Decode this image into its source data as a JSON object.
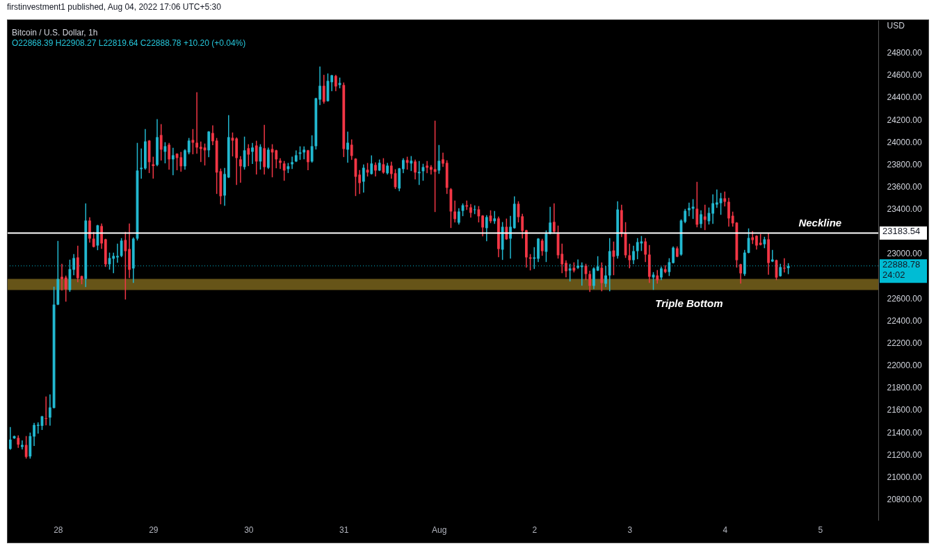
{
  "chart_data": {
    "type": "candlestick",
    "title": "Bitcoin / U.S. Dollar, 1h",
    "subtitle": "O22868.39 H22908.27 L22819.64 C22888.78 +10.20 (+0.04%)",
    "ylabel": "USD",
    "colors": [
      "#22b8d0",
      "#22b8d0",
      "#f23645",
      "#22b8d0",
      "#f23645",
      "#22b8d0",
      "#22b8d0",
      "#22b8d0",
      "#22b8d0",
      "#f23645",
      "#22b8d0",
      "#22b8d0",
      "#22b8d0",
      "#f23645",
      "#f23645",
      "#22b8d0",
      "#22b8d0",
      "#f23645",
      "#f23645",
      "#22b8d0",
      "#f23645",
      "#f23645",
      "#22b8d0",
      "#f23645",
      "#f23645",
      "#22b8d0",
      "#22b8d0",
      "#22b8d0",
      "#22b8d0",
      "#f23645",
      "#f23645",
      "#22b8d0",
      "#22b8d0",
      "#22b8d0",
      "#22b8d0",
      "#f23645",
      "#f23645",
      "#22b8d0",
      "#f23645",
      "#22b8d0",
      "#f23645",
      "#22b8d0",
      "#f23645",
      "#f23645",
      "#22b8d0",
      "#22b8d0",
      "#f23645",
      "#f23645",
      "#f23645",
      "#f23645",
      "#22b8d0",
      "#f23645",
      "#f23645",
      "#f23645",
      "#22b8d0",
      "#22b8d0",
      "#f23645",
      "#f23645",
      "#f23645",
      "#22b8d0",
      "#f23645",
      "#22b8d0",
      "#f23645",
      "#22b8d0",
      "#f23645",
      "#22b8d0",
      "#f23645",
      "#f23645",
      "#f23645",
      "#f23645",
      "#22b8d0",
      "#22b8d0",
      "#22b8d0",
      "#22b8d0",
      "#22b8d0",
      "#f23645",
      "#22b8d0",
      "#22b8d0",
      "#22b8d0",
      "#f23645",
      "#22b8d0",
      "#22b8d0",
      "#f23645",
      "#22b8d0",
      "#f23645",
      "#22b8d0",
      "#f23645",
      "#f23645",
      "#f23645",
      "#22b8d0",
      "#f23645",
      "#22b8d0",
      "#f23645",
      "#22b8d0",
      "#f23645",
      "#22b8d0",
      "#f23645",
      "#f23645",
      "#22b8d0",
      "#22b8d0",
      "#f23645",
      "#22b8d0",
      "#f23645",
      "#22b8d0",
      "#22b8d0",
      "#f23645",
      "#f23645",
      "#f23645",
      "#22b8d0",
      "#f23645",
      "#f23645",
      "#f23645",
      "#f23645",
      "#22b8d0",
      "#22b8d0",
      "#f23645",
      "#f23645",
      "#22b8d0",
      "#f23645",
      "#f23645",
      "#22b8d0",
      "#f23645",
      "#22b8d0",
      "#f23645",
      "#22b8d0",
      "#f23645",
      "#22b8d0",
      "#22b8d0",
      "#f23645",
      "#f23645",
      "#f23645",
      "#f23645",
      "#22b8d0",
      "#22b8d0",
      "#f23645",
      "#22b8d0",
      "#22b8d0",
      "#f23645",
      "#f23645",
      "#f23645",
      "#f23645",
      "#22b8d0",
      "#f23645",
      "#22b8d0",
      "#22b8d0",
      "#f23645",
      "#f23645",
      "#22b8d0",
      "#22b8d0",
      "#f23645",
      "#22b8d0",
      "#22b8d0",
      "#f23645",
      "#22b8d0",
      "#f23645",
      "#f23645",
      "#f23645",
      "#22b8d0",
      "#22b8d0",
      "#22b8d0",
      "#f23645",
      "#f23645",
      "#22b8d0",
      "#f23645",
      "#22b8d0",
      "#f23645",
      "#22b8d0",
      "#22b8d0",
      "#f23645",
      "#22b8d0",
      "#22b8d0",
      "#22b8d0",
      "#22b8d0",
      "#f23645",
      "#22b8d0",
      "#f23645",
      "#22b8d0",
      "#22b8d0",
      "#22b8d0",
      "#22b8d0",
      "#f23645",
      "#f23645",
      "#f23645",
      "#f23645",
      "#f23645",
      "#22b8d0",
      "#22b8d0",
      "#f23645",
      "#f23645",
      "#f23645",
      "#22b8d0",
      "#f23645",
      "#22b8d0",
      "#f23645",
      "#22b8d0",
      "#f23645",
      "#22b8d0"
    ],
    "x": [
      "2022-07-27T12:00",
      "2022-07-27T13:00",
      "2022-07-27T14:00",
      "2022-07-27T15:00",
      "2022-07-27T16:00",
      "2022-07-27T17:00",
      "2022-07-27T18:00",
      "2022-07-27T19:00",
      "2022-07-27T20:00",
      "2022-07-27T21:00",
      "2022-07-27T22:00",
      "2022-07-27T23:00",
      "2022-07-28T00:00",
      "2022-07-28T01:00",
      "2022-07-28T02:00",
      "2022-07-28T03:00",
      "2022-07-28T04:00",
      "2022-07-28T05:00",
      "2022-07-28T06:00",
      "2022-07-28T07:00",
      "2022-07-28T08:00",
      "2022-07-28T09:00",
      "2022-07-28T10:00",
      "2022-07-28T11:00",
      "2022-07-28T12:00",
      "2022-07-28T13:00",
      "2022-07-28T14:00",
      "2022-07-28T15:00",
      "2022-07-28T16:00",
      "2022-07-28T17:00",
      "2022-07-28T18:00",
      "2022-07-28T19:00",
      "2022-07-28T20:00",
      "2022-07-28T21:00",
      "2022-07-28T22:00",
      "2022-07-28T23:00",
      "2022-07-29T00:00",
      "2022-07-29T01:00",
      "2022-07-29T02:00",
      "2022-07-29T03:00",
      "2022-07-29T04:00",
      "2022-07-29T05:00",
      "2022-07-29T06:00",
      "2022-07-29T07:00",
      "2022-07-29T08:00",
      "2022-07-29T09:00",
      "2022-07-29T10:00",
      "2022-07-29T11:00",
      "2022-07-29T12:00",
      "2022-07-29T13:00",
      "2022-07-29T14:00",
      "2022-07-29T15:00",
      "2022-07-29T16:00",
      "2022-07-29T17:00",
      "2022-07-29T18:00",
      "2022-07-29T19:00",
      "2022-07-29T20:00",
      "2022-07-29T21:00",
      "2022-07-29T22:00",
      "2022-07-29T23:00",
      "2022-07-30T00:00",
      "2022-07-30T01:00",
      "2022-07-30T02:00",
      "2022-07-30T03:00",
      "2022-07-30T04:00",
      "2022-07-30T05:00",
      "2022-07-30T06:00",
      "2022-07-30T07:00",
      "2022-07-30T08:00",
      "2022-07-30T09:00",
      "2022-07-30T10:00",
      "2022-07-30T11:00",
      "2022-07-30T12:00",
      "2022-07-30T13:00",
      "2022-07-30T14:00",
      "2022-07-30T15:00",
      "2022-07-30T16:00",
      "2022-07-30T17:00",
      "2022-07-30T18:00",
      "2022-07-30T19:00",
      "2022-07-30T20:00",
      "2022-07-30T21:00",
      "2022-07-30T22:00",
      "2022-07-30T23:00",
      "2022-07-31T00:00",
      "2022-07-31T01:00",
      "2022-07-31T02:00",
      "2022-07-31T03:00",
      "2022-07-31T04:00",
      "2022-07-31T05:00",
      "2022-07-31T06:00",
      "2022-07-31T07:00",
      "2022-07-31T08:00",
      "2022-07-31T09:00",
      "2022-07-31T10:00",
      "2022-07-31T11:00",
      "2022-07-31T12:00",
      "2022-07-31T13:00",
      "2022-07-31T14:00",
      "2022-07-31T15:00",
      "2022-07-31T16:00",
      "2022-07-31T17:00",
      "2022-07-31T18:00",
      "2022-07-31T19:00",
      "2022-07-31T20:00",
      "2022-07-31T21:00",
      "2022-07-31T22:00",
      "2022-07-31T23:00",
      "2022-08-01T00:00",
      "2022-08-01T01:00",
      "2022-08-01T02:00",
      "2022-08-01T03:00",
      "2022-08-01T04:00",
      "2022-08-01T05:00",
      "2022-08-01T06:00",
      "2022-08-01T07:00",
      "2022-08-01T08:00",
      "2022-08-01T09:00",
      "2022-08-01T10:00",
      "2022-08-01T11:00",
      "2022-08-01T12:00",
      "2022-08-01T13:00",
      "2022-08-01T14:00",
      "2022-08-01T15:00",
      "2022-08-01T16:00",
      "2022-08-01T17:00",
      "2022-08-01T18:00",
      "2022-08-01T19:00",
      "2022-08-01T20:00",
      "2022-08-01T21:00",
      "2022-08-01T22:00",
      "2022-08-01T23:00",
      "2022-08-02T00:00",
      "2022-08-02T01:00",
      "2022-08-02T02:00",
      "2022-08-02T03:00",
      "2022-08-02T04:00",
      "2022-08-02T05:00",
      "2022-08-02T06:00",
      "2022-08-02T07:00",
      "2022-08-02T08:00",
      "2022-08-02T09:00",
      "2022-08-02T10:00",
      "2022-08-02T11:00",
      "2022-08-02T12:00",
      "2022-08-02T13:00",
      "2022-08-02T14:00",
      "2022-08-02T15:00",
      "2022-08-02T16:00",
      "2022-08-02T17:00",
      "2022-08-02T18:00",
      "2022-08-02T19:00",
      "2022-08-02T20:00",
      "2022-08-02T21:00",
      "2022-08-02T22:00",
      "2022-08-02T23:00",
      "2022-08-03T00:00",
      "2022-08-03T01:00",
      "2022-08-03T02:00",
      "2022-08-03T03:00",
      "2022-08-03T04:00",
      "2022-08-03T05:00",
      "2022-08-03T06:00",
      "2022-08-03T07:00",
      "2022-08-03T08:00",
      "2022-08-03T09:00",
      "2022-08-03T10:00",
      "2022-08-03T11:00",
      "2022-08-03T12:00",
      "2022-08-03T13:00",
      "2022-08-03T14:00",
      "2022-08-03T15:00",
      "2022-08-03T16:00",
      "2022-08-03T17:00",
      "2022-08-03T18:00",
      "2022-08-03T19:00",
      "2022-08-03T20:00",
      "2022-08-03T21:00",
      "2022-08-03T22:00",
      "2022-08-03T23:00",
      "2022-08-04T00:00",
      "2022-08-04T01:00",
      "2022-08-04T02:00",
      "2022-08-04T03:00",
      "2022-08-04T04:00",
      "2022-08-04T05:00",
      "2022-08-04T06:00",
      "2022-08-04T07:00",
      "2022-08-04T08:00",
      "2022-08-04T09:00",
      "2022-08-04T10:00",
      "2022-08-04T11:00",
      "2022-08-04T12:00",
      "2022-08-04T13:00",
      "2022-08-04T14:00",
      "2022-08-04T15:00",
      "2022-08-04T16:00"
    ],
    "ohlc": [
      [
        21250,
        21441,
        21246,
        21333
      ],
      [
        21344,
        21364,
        21344,
        21364
      ],
      [
        21348,
        21366,
        21263,
        21288
      ],
      [
        21267,
        21321,
        21250,
        21285
      ],
      [
        21285,
        21360,
        21167,
        21178
      ],
      [
        21182,
        21391,
        21167,
        21364
      ],
      [
        21360,
        21478,
        21281,
        21464
      ],
      [
        21456,
        21483,
        21391,
        21466
      ],
      [
        21456,
        21541,
        21424,
        21541
      ],
      [
        21524,
        21715,
        21466,
        21518
      ],
      [
        21530,
        21733,
        21462,
        21621
      ],
      [
        21617,
        22698,
        21617,
        22542
      ],
      [
        22542,
        23108,
        22542,
        22772
      ],
      [
        22791,
        22903,
        22673,
        22770
      ],
      [
        22785,
        22797,
        22573,
        22679
      ],
      [
        22673,
        22940,
        22661,
        22860
      ],
      [
        22854,
        22990,
        22810,
        22959
      ],
      [
        22965,
        23065,
        22748,
        22779
      ],
      [
        22797,
        22797,
        22729,
        22766
      ],
      [
        22772,
        23444,
        22704,
        23295
      ],
      [
        23295,
        23320,
        23102,
        23133
      ],
      [
        23133,
        23189,
        23059,
        23059
      ],
      [
        23071,
        23252,
        23034,
        23252
      ],
      [
        23246,
        23264,
        23046,
        23090
      ],
      [
        23127,
        23127,
        22885,
        22903
      ],
      [
        22903,
        23003,
        22860,
        22959
      ],
      [
        22953,
        23003,
        22829,
        22978
      ],
      [
        22965,
        23084,
        22922,
        22978
      ],
      [
        22978,
        23133,
        22972,
        23115
      ],
      [
        23121,
        23189,
        22592,
        23021
      ],
      [
        23040,
        23264,
        22785,
        22854
      ],
      [
        22866,
        23140,
        22741,
        23133
      ],
      [
        23133,
        23986,
        23121,
        23743
      ],
      [
        23756,
        23936,
        23675,
        23768
      ],
      [
        23762,
        24110,
        23756,
        24004
      ],
      [
        24011,
        24011,
        23725,
        23818
      ],
      [
        23799,
        23862,
        23675,
        23783
      ],
      [
        23793,
        24198,
        23787,
        24042
      ],
      [
        24061,
        24154,
        23837,
        23930
      ],
      [
        23911,
        23992,
        23812,
        23961
      ],
      [
        23974,
        23986,
        23756,
        23843
      ],
      [
        23843,
        23942,
        23706,
        23880
      ],
      [
        23893,
        23893,
        23750,
        23855
      ],
      [
        23862,
        23905,
        23737,
        23781
      ],
      [
        23781,
        23930,
        23756,
        23924
      ],
      [
        23905,
        24030,
        23893,
        24011
      ],
      [
        24017,
        24110,
        23893,
        23992
      ],
      [
        23992,
        24440,
        23899,
        23949
      ],
      [
        23955,
        23998,
        23824,
        23936
      ],
      [
        23949,
        23980,
        23793,
        23924
      ],
      [
        23924,
        24092,
        23868,
        24092
      ],
      [
        24079,
        24142,
        23974,
        24005
      ],
      [
        24011,
        24030,
        23538,
        23725
      ],
      [
        23737,
        23756,
        23445,
        23513
      ],
      [
        23519,
        23762,
        23432,
        23712
      ],
      [
        23681,
        24235,
        23681,
        24042
      ],
      [
        24036,
        24079,
        23874,
        24011
      ],
      [
        24030,
        24036,
        23619,
        23855
      ],
      [
        23843,
        23868,
        23638,
        23781
      ],
      [
        23774,
        24042,
        23756,
        23924
      ],
      [
        23943,
        23974,
        23787,
        23886
      ],
      [
        23911,
        23986,
        23806,
        23949
      ],
      [
        23967,
        24005,
        23712,
        23824
      ],
      [
        23824,
        23974,
        23756,
        23955
      ],
      [
        23943,
        24148,
        23712,
        23774
      ],
      [
        23768,
        23943,
        23762,
        23930
      ],
      [
        23936,
        23974,
        23687,
        23905
      ],
      [
        23924,
        23924,
        23768,
        23843
      ],
      [
        23831,
        23849,
        23762,
        23812
      ],
      [
        23806,
        23824,
        23656,
        23743
      ],
      [
        23756,
        23806,
        23725,
        23781
      ],
      [
        23799,
        23862,
        23762,
        23818
      ],
      [
        23824,
        23918,
        23824,
        23880
      ],
      [
        23893,
        23955,
        23843,
        23905
      ],
      [
        23905,
        23955,
        23849,
        23930
      ],
      [
        23924,
        23924,
        23750,
        23818
      ],
      [
        23824,
        24054,
        23818,
        23961
      ],
      [
        23961,
        24390,
        23936,
        24390
      ],
      [
        24378,
        24670,
        24334,
        24502
      ],
      [
        24502,
        24596,
        24347,
        24359
      ],
      [
        24365,
        24608,
        24365,
        24546
      ],
      [
        24534,
        24596,
        24459,
        24596
      ],
      [
        24590,
        24596,
        24459,
        24496
      ],
      [
        24509,
        24571,
        24484,
        24527
      ],
      [
        24509,
        24527,
        23868,
        23936
      ],
      [
        23930,
        24086,
        23818,
        23992
      ],
      [
        23974,
        24017,
        23843,
        23874
      ],
      [
        23849,
        23849,
        23519,
        23687
      ],
      [
        23706,
        23743,
        23538,
        23631
      ],
      [
        23644,
        23793,
        23550,
        23768
      ],
      [
        23750,
        23806,
        23694,
        23725
      ],
      [
        23712,
        23874,
        23712,
        23806
      ],
      [
        23793,
        23812,
        23694,
        23743
      ],
      [
        23743,
        23837,
        23743,
        23812
      ],
      [
        23799,
        23849,
        23719,
        23725
      ],
      [
        23719,
        23806,
        23712,
        23787
      ],
      [
        23787,
        23818,
        23675,
        23712
      ],
      [
        23719,
        23750,
        23582,
        23594
      ],
      [
        23582,
        23762,
        23563,
        23762
      ],
      [
        23756,
        23849,
        23725,
        23837
      ],
      [
        23837,
        23862,
        23756,
        23812
      ],
      [
        23806,
        23868,
        23743,
        23831
      ],
      [
        23824,
        23837,
        23669,
        23725
      ],
      [
        23719,
        23824,
        23619,
        23731
      ],
      [
        23737,
        23799,
        23656,
        23774
      ],
      [
        23787,
        23824,
        23725,
        23768
      ],
      [
        23774,
        23787,
        23712,
        23750
      ],
      [
        23756,
        24185,
        23376,
        23731
      ],
      [
        23743,
        23967,
        23718,
        23830
      ],
      [
        23843,
        23899,
        23780,
        23805
      ],
      [
        23812,
        23830,
        23538,
        23588
      ],
      [
        23575,
        23581,
        23233,
        23376
      ],
      [
        23376,
        23469,
        23283,
        23308
      ],
      [
        23276,
        23401,
        23264,
        23376
      ],
      [
        23382,
        23444,
        23339,
        23432
      ],
      [
        23432,
        23469,
        23395,
        23420
      ],
      [
        23413,
        23438,
        23326,
        23364
      ],
      [
        23389,
        23426,
        23357,
        23395
      ],
      [
        23395,
        23420,
        23283,
        23333
      ],
      [
        23339,
        23339,
        23158,
        23233
      ],
      [
        23227,
        23339,
        23115,
        23326
      ],
      [
        23339,
        23382,
        23276,
        23289
      ],
      [
        23289,
        23376,
        23270,
        23314
      ],
      [
        23314,
        23326,
        22972,
        23040
      ],
      [
        23034,
        23277,
        22947,
        23239
      ],
      [
        23239,
        23308,
        23127,
        23127
      ],
      [
        23133,
        23333,
        22959,
        23239
      ],
      [
        23227,
        23507,
        23227,
        23445
      ],
      [
        23445,
        23463,
        23283,
        23326
      ],
      [
        23333,
        23351,
        23140,
        23202
      ],
      [
        23208,
        23208,
        22878,
        22965
      ],
      [
        22965,
        22990,
        22853,
        22953
      ],
      [
        22953,
        23052,
        22866,
        22965
      ],
      [
        22953,
        23133,
        22928,
        23133
      ],
      [
        23115,
        23127,
        22984,
        23021
      ],
      [
        23015,
        23202,
        22928,
        23177
      ],
      [
        23177,
        23413,
        23177,
        23277
      ],
      [
        23283,
        23444,
        23183,
        23196
      ],
      [
        23177,
        23245,
        22959,
        22984
      ],
      [
        22997,
        23084,
        22828,
        22903
      ],
      [
        22916,
        22934,
        22791,
        22841
      ],
      [
        22847,
        22903,
        22754,
        22866
      ],
      [
        22872,
        22916,
        22835,
        22847
      ],
      [
        22872,
        22941,
        22866,
        22891
      ],
      [
        22878,
        22916,
        22717,
        22891
      ],
      [
        22891,
        22903,
        22766,
        22816
      ],
      [
        22816,
        22841,
        22661,
        22710
      ],
      [
        22710,
        22872,
        22685,
        22866
      ],
      [
        22847,
        22971,
        22847,
        22884
      ],
      [
        22872,
        22915,
        22666,
        22735
      ],
      [
        22729,
        22884,
        22704,
        22803
      ],
      [
        22803,
        23133,
        22666,
        23021
      ],
      [
        23027,
        23102,
        22810,
        22971
      ],
      [
        22978,
        23463,
        22959,
        23394
      ],
      [
        23388,
        23432,
        23152,
        23177
      ],
      [
        23183,
        23276,
        22965,
        22984
      ],
      [
        22984,
        23083,
        22872,
        22940
      ],
      [
        22940,
        23065,
        22909,
        23021
      ],
      [
        23021,
        23133,
        22953,
        23102
      ],
      [
        23090,
        23152,
        23027,
        23108
      ],
      [
        23108,
        23133,
        22928,
        22990
      ],
      [
        22990,
        23071,
        22741,
        22791
      ],
      [
        22785,
        22828,
        22679,
        22810
      ],
      [
        22803,
        22847,
        22735,
        22760
      ],
      [
        22785,
        22878,
        22766,
        22866
      ],
      [
        22859,
        22890,
        22828,
        22834
      ],
      [
        22834,
        22953,
        22803,
        22922
      ],
      [
        22915,
        23058,
        22915,
        23052
      ],
      [
        23046,
        23058,
        22971,
        22971
      ],
      [
        22990,
        23301,
        22984,
        23295
      ],
      [
        23283,
        23394,
        23276,
        23382
      ],
      [
        23388,
        23450,
        23338,
        23407
      ],
      [
        23401,
        23482,
        23314,
        23419
      ],
      [
        23401,
        23637,
        23239,
        23258
      ],
      [
        23264,
        23382,
        23233,
        23351
      ],
      [
        23332,
        23432,
        23214,
        23301
      ],
      [
        23289,
        23407,
        23264,
        23363
      ],
      [
        23357,
        23525,
        23270,
        23450
      ],
      [
        23438,
        23569,
        23413,
        23457
      ],
      [
        23450,
        23538,
        23351,
        23494
      ],
      [
        23494,
        23550,
        23426,
        23463
      ],
      [
        23463,
        23494,
        23245,
        23314
      ],
      [
        23338,
        23370,
        23245,
        23270
      ],
      [
        23276,
        23276,
        22878,
        22940
      ],
      [
        22903,
        22903,
        22735,
        22822
      ],
      [
        22816,
        23027,
        22803,
        23008
      ],
      [
        23006,
        23220,
        23006,
        23139
      ],
      [
        23145,
        23195,
        23089,
        23120
      ],
      [
        23158,
        23158,
        23040,
        23071
      ],
      [
        23096,
        23170,
        23077,
        23077
      ],
      [
        23083,
        23145,
        23052,
        23127
      ],
      [
        23127,
        23176,
        22815,
        22915
      ],
      [
        22928,
        23027,
        22928,
        22946
      ],
      [
        22940,
        22940,
        22766,
        22784
      ],
      [
        22797,
        22903,
        22797,
        22878
      ],
      [
        22872,
        22952,
        22834,
        22865
      ],
      [
        22868.39,
        22908.27,
        22819.64,
        22888.78
      ]
    ],
    "xlim": [
      "2022-07-27T11:20",
      "2022-08-05T14:40"
    ],
    "xticks": [
      {
        "value": "2022-07-28",
        "label": "28"
      },
      {
        "value": "2022-07-29",
        "label": "29"
      },
      {
        "value": "2022-07-30",
        "label": "30"
      },
      {
        "value": "2022-07-31",
        "label": "31"
      },
      {
        "value": "2022-08-01",
        "label": "Aug"
      },
      {
        "value": "2022-08-02",
        "label": "2"
      },
      {
        "value": "2022-08-03",
        "label": "3"
      },
      {
        "value": "2022-08-04",
        "label": "4"
      },
      {
        "value": "2022-08-05",
        "label": "5"
      }
    ],
    "ylim": [
      20610,
      25090
    ],
    "yticks": [
      {
        "value": 20800,
        "label": "20800.00"
      },
      {
        "value": 21000,
        "label": "21000.00"
      },
      {
        "value": 21200,
        "label": "21200.00"
      },
      {
        "value": 21400,
        "label": "21400.00"
      },
      {
        "value": 21600,
        "label": "21600.00"
      },
      {
        "value": 21800,
        "label": "21800.00"
      },
      {
        "value": 22000,
        "label": "22000.00"
      },
      {
        "value": 22200,
        "label": "22200.00"
      },
      {
        "value": 22400,
        "label": "22400.00"
      },
      {
        "value": 22600,
        "label": "22600.00"
      },
      {
        "value": 23000,
        "label": "23000.00"
      },
      {
        "value": 23400,
        "label": "23400.00"
      },
      {
        "value": 23600,
        "label": "23600.00"
      },
      {
        "value": 23800,
        "label": "23800.00"
      },
      {
        "value": 24000,
        "label": "24000.00"
      },
      {
        "value": 24200,
        "label": "24200.00"
      },
      {
        "value": 24400,
        "label": "24400.00"
      },
      {
        "value": 24600,
        "label": "24600.00"
      },
      {
        "value": 24800,
        "label": "24800.00"
      }
    ],
    "ref_lines": [
      {
        "axis": "y",
        "value": 23183.54,
        "label": "23183.54",
        "color": "#ffffff",
        "line_style": "solid"
      },
      {
        "axis": "y",
        "value": 22888.78,
        "label": "22888.78\n24:02",
        "color": "#00bcd4",
        "line_style": "dotted"
      }
    ],
    "bands": [
      {
        "axis": "y",
        "from": 22673,
        "to": 22772,
        "label": null,
        "color": "#665418"
      }
    ],
    "annotations": [
      "firstinvestment1 published, Aug 04, 2022 17:06 UTC+5:30",
      {
        "text": "Neckline",
        "x": "2022-08-05",
        "y": 23183.54
      },
      {
        "text": "Triple Bottom",
        "x": "2022-08-03T15:00",
        "y": 22673
      }
    ]
  }
}
